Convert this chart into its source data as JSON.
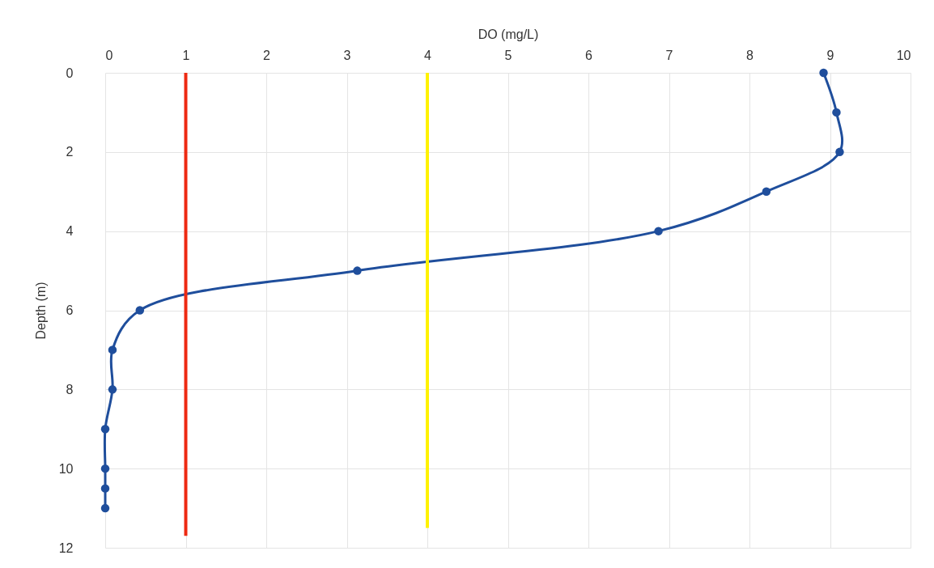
{
  "chart_data": {
    "type": "line",
    "xlabel": "DO (mg/L)",
    "ylabel": "Depth (m)",
    "xlim": [
      0,
      10
    ],
    "xticks": [
      0,
      1,
      2,
      3,
      4,
      5,
      6,
      7,
      8,
      9,
      10
    ],
    "ylim": [
      12,
      0
    ],
    "yticks": [
      0,
      2,
      4,
      6,
      8,
      10,
      12
    ],
    "grid": true,
    "series": [
      {
        "color": "#1f4e9c",
        "marker": "circle",
        "x": [
          8.92,
          9.08,
          9.12,
          8.21,
          6.87,
          3.13,
          0.43,
          0.09,
          0.09,
          0,
          0,
          0,
          0
        ],
        "values": [
          0,
          1,
          2,
          3,
          4,
          5,
          6,
          7,
          8,
          9,
          10,
          10.5,
          11
        ]
      },
      {
        "color": "#ee2a12",
        "marker": "none",
        "x": [
          1,
          1
        ],
        "values": [
          0,
          11.7
        ]
      },
      {
        "color": "#fff200",
        "marker": "none",
        "x": [
          4,
          4
        ],
        "values": [
          0,
          11.5
        ]
      }
    ]
  }
}
